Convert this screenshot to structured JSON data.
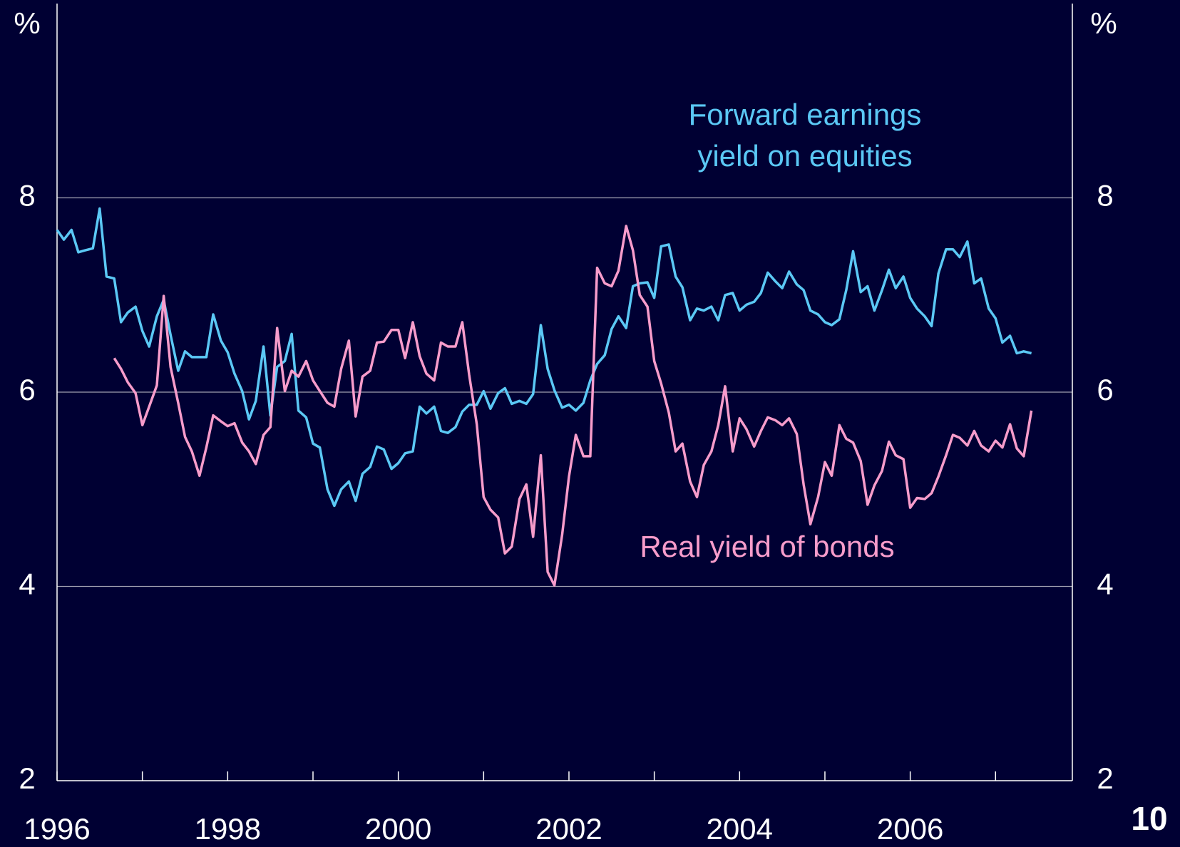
{
  "chart_data": {
    "type": "line",
    "ylabel": "%",
    "y2label": "%",
    "ylim": [
      2,
      10
    ],
    "yticks": [
      2,
      4,
      6,
      8
    ],
    "y2lim": [
      2,
      10
    ],
    "y2ticks": [
      2,
      4,
      6,
      8
    ],
    "grid": true,
    "xlim": [
      1996,
      2007.9
    ],
    "xticks": [
      1996,
      1998,
      2000,
      2002,
      2004,
      2006
    ],
    "xminorticks": [
      1997,
      1999,
      2001,
      2003,
      2005,
      2007
    ],
    "x": [
      1996,
      1996.08,
      1996.17,
      1996.25,
      1996.33,
      1996.42,
      1996.5,
      1996.58,
      1996.67,
      1996.75,
      1996.83,
      1996.92,
      1997,
      1997.08,
      1997.17,
      1997.25,
      1997.33,
      1997.42,
      1997.5,
      1997.58,
      1997.67,
      1997.75,
      1997.83,
      1997.92,
      1998,
      1998.08,
      1998.17,
      1998.25,
      1998.33,
      1998.42,
      1998.5,
      1998.58,
      1998.67,
      1998.75,
      1998.83,
      1998.92,
      1999,
      1999.08,
      1999.17,
      1999.25,
      1999.33,
      1999.42,
      1999.5,
      1999.58,
      1999.67,
      1999.75,
      1999.83,
      1999.92,
      2000,
      2000.08,
      2000.17,
      2000.25,
      2000.33,
      2000.42,
      2000.5,
      2000.58,
      2000.67,
      2000.75,
      2000.83,
      2000.92,
      2001,
      2001.08,
      2001.17,
      2001.25,
      2001.33,
      2001.42,
      2001.5,
      2001.58,
      2001.67,
      2001.75,
      2001.83,
      2001.92,
      2002,
      2002.08,
      2002.17,
      2002.25,
      2002.33,
      2002.42,
      2002.5,
      2002.58,
      2002.67,
      2002.75,
      2002.83,
      2002.92,
      2003,
      2003.08,
      2003.17,
      2003.25,
      2003.33,
      2003.42,
      2003.5,
      2003.58,
      2003.67,
      2003.75,
      2003.83,
      2003.92,
      2004,
      2004.08,
      2004.17,
      2004.25,
      2004.33,
      2004.42,
      2004.5,
      2004.58,
      2004.67,
      2004.75,
      2004.83,
      2004.92,
      2005,
      2005.08,
      2005.17,
      2005.25,
      2005.33,
      2005.42,
      2005.5,
      2005.58,
      2005.67,
      2005.75,
      2005.83,
      2005.92,
      2006,
      2006.08,
      2006.17,
      2006.25,
      2006.33,
      2006.42,
      2006.5,
      2006.58,
      2006.67,
      2006.75,
      2006.83,
      2006.92,
      2007,
      2007.08,
      2007.17,
      2007.25,
      2007.33,
      2007.42
    ],
    "series": [
      {
        "label_lines": [
          "Forward earnings",
          "yield on equities"
        ],
        "color": "#5bc8f5",
        "values": [
          7.67,
          7.57,
          7.67,
          7.44,
          7.46,
          7.48,
          7.89,
          7.19,
          7.17,
          6.72,
          6.82,
          6.88,
          6.63,
          6.47,
          6.78,
          6.95,
          6.59,
          6.22,
          6.42,
          6.36,
          6.36,
          6.36,
          6.8,
          6.53,
          6.41,
          6.19,
          6.01,
          5.72,
          5.91,
          6.47,
          5.76,
          6.26,
          6.32,
          6.6,
          5.81,
          5.74,
          5.47,
          5.43,
          5.0,
          4.83,
          5.0,
          5.08,
          4.88,
          5.16,
          5.23,
          5.44,
          5.41,
          5.21,
          5.27,
          5.37,
          5.39,
          5.85,
          5.78,
          5.85,
          5.6,
          5.58,
          5.64,
          5.8,
          5.87,
          5.87,
          6.01,
          5.83,
          5.99,
          6.04,
          5.88,
          5.91,
          5.88,
          5.98,
          6.69,
          6.24,
          6.02,
          5.84,
          5.87,
          5.81,
          5.89,
          6.12,
          6.29,
          6.38,
          6.65,
          6.78,
          6.66,
          7.09,
          7.12,
          7.13,
          6.97,
          7.5,
          7.52,
          7.19,
          7.08,
          6.74,
          6.86,
          6.84,
          6.88,
          6.74,
          7.0,
          7.02,
          6.84,
          6.9,
          6.93,
          7.02,
          7.23,
          7.14,
          7.07,
          7.24,
          7.11,
          7.05,
          6.84,
          6.8,
          6.72,
          6.69,
          6.75,
          7.05,
          7.45,
          7.03,
          7.09,
          6.84,
          7.05,
          7.26,
          7.07,
          7.19,
          6.97,
          6.86,
          6.78,
          6.68,
          7.22,
          7.47,
          7.47,
          7.39,
          7.55,
          7.12,
          7.17,
          6.86,
          6.76,
          6.51,
          6.58,
          6.4,
          6.42,
          6.4
        ]
      },
      {
        "label_lines": [
          "Real yield of bonds"
        ],
        "color": "#f79ccb",
        "values": [
          null,
          null,
          null,
          null,
          null,
          null,
          null,
          null,
          6.35,
          6.24,
          6.1,
          5.99,
          5.66,
          5.85,
          6.07,
          6.99,
          6.26,
          5.89,
          5.54,
          5.39,
          5.14,
          5.43,
          5.76,
          5.7,
          5.65,
          5.68,
          5.48,
          5.39,
          5.26,
          5.56,
          5.64,
          6.66,
          6.01,
          6.22,
          6.16,
          6.32,
          6.12,
          6.01,
          5.89,
          5.85,
          6.24,
          6.53,
          5.75,
          6.16,
          6.22,
          6.51,
          6.52,
          6.64,
          6.64,
          6.35,
          6.72,
          6.37,
          6.19,
          6.12,
          6.51,
          6.47,
          6.47,
          6.72,
          6.18,
          5.67,
          4.92,
          4.79,
          4.71,
          4.34,
          4.41,
          4.9,
          5.05,
          4.51,
          5.35,
          4.15,
          4.01,
          4.53,
          5.13,
          5.56,
          5.34,
          5.34,
          7.28,
          7.12,
          7.09,
          7.25,
          7.71,
          7.46,
          7.0,
          6.88,
          6.32,
          6.09,
          5.79,
          5.39,
          5.47,
          5.08,
          4.92,
          5.25,
          5.39,
          5.66,
          6.06,
          5.39,
          5.73,
          5.62,
          5.44,
          5.6,
          5.74,
          5.71,
          5.66,
          5.73,
          5.57,
          5.05,
          4.64,
          4.92,
          5.28,
          5.14,
          5.66,
          5.52,
          5.48,
          5.29,
          4.84,
          5.04,
          5.19,
          5.49,
          5.35,
          5.31,
          4.81,
          4.91,
          4.9,
          4.96,
          5.13,
          5.35,
          5.56,
          5.53,
          5.45,
          5.6,
          5.45,
          5.39,
          5.5,
          5.43,
          5.67,
          5.42,
          5.34,
          5.81
        ]
      }
    ]
  },
  "page_number": "10"
}
